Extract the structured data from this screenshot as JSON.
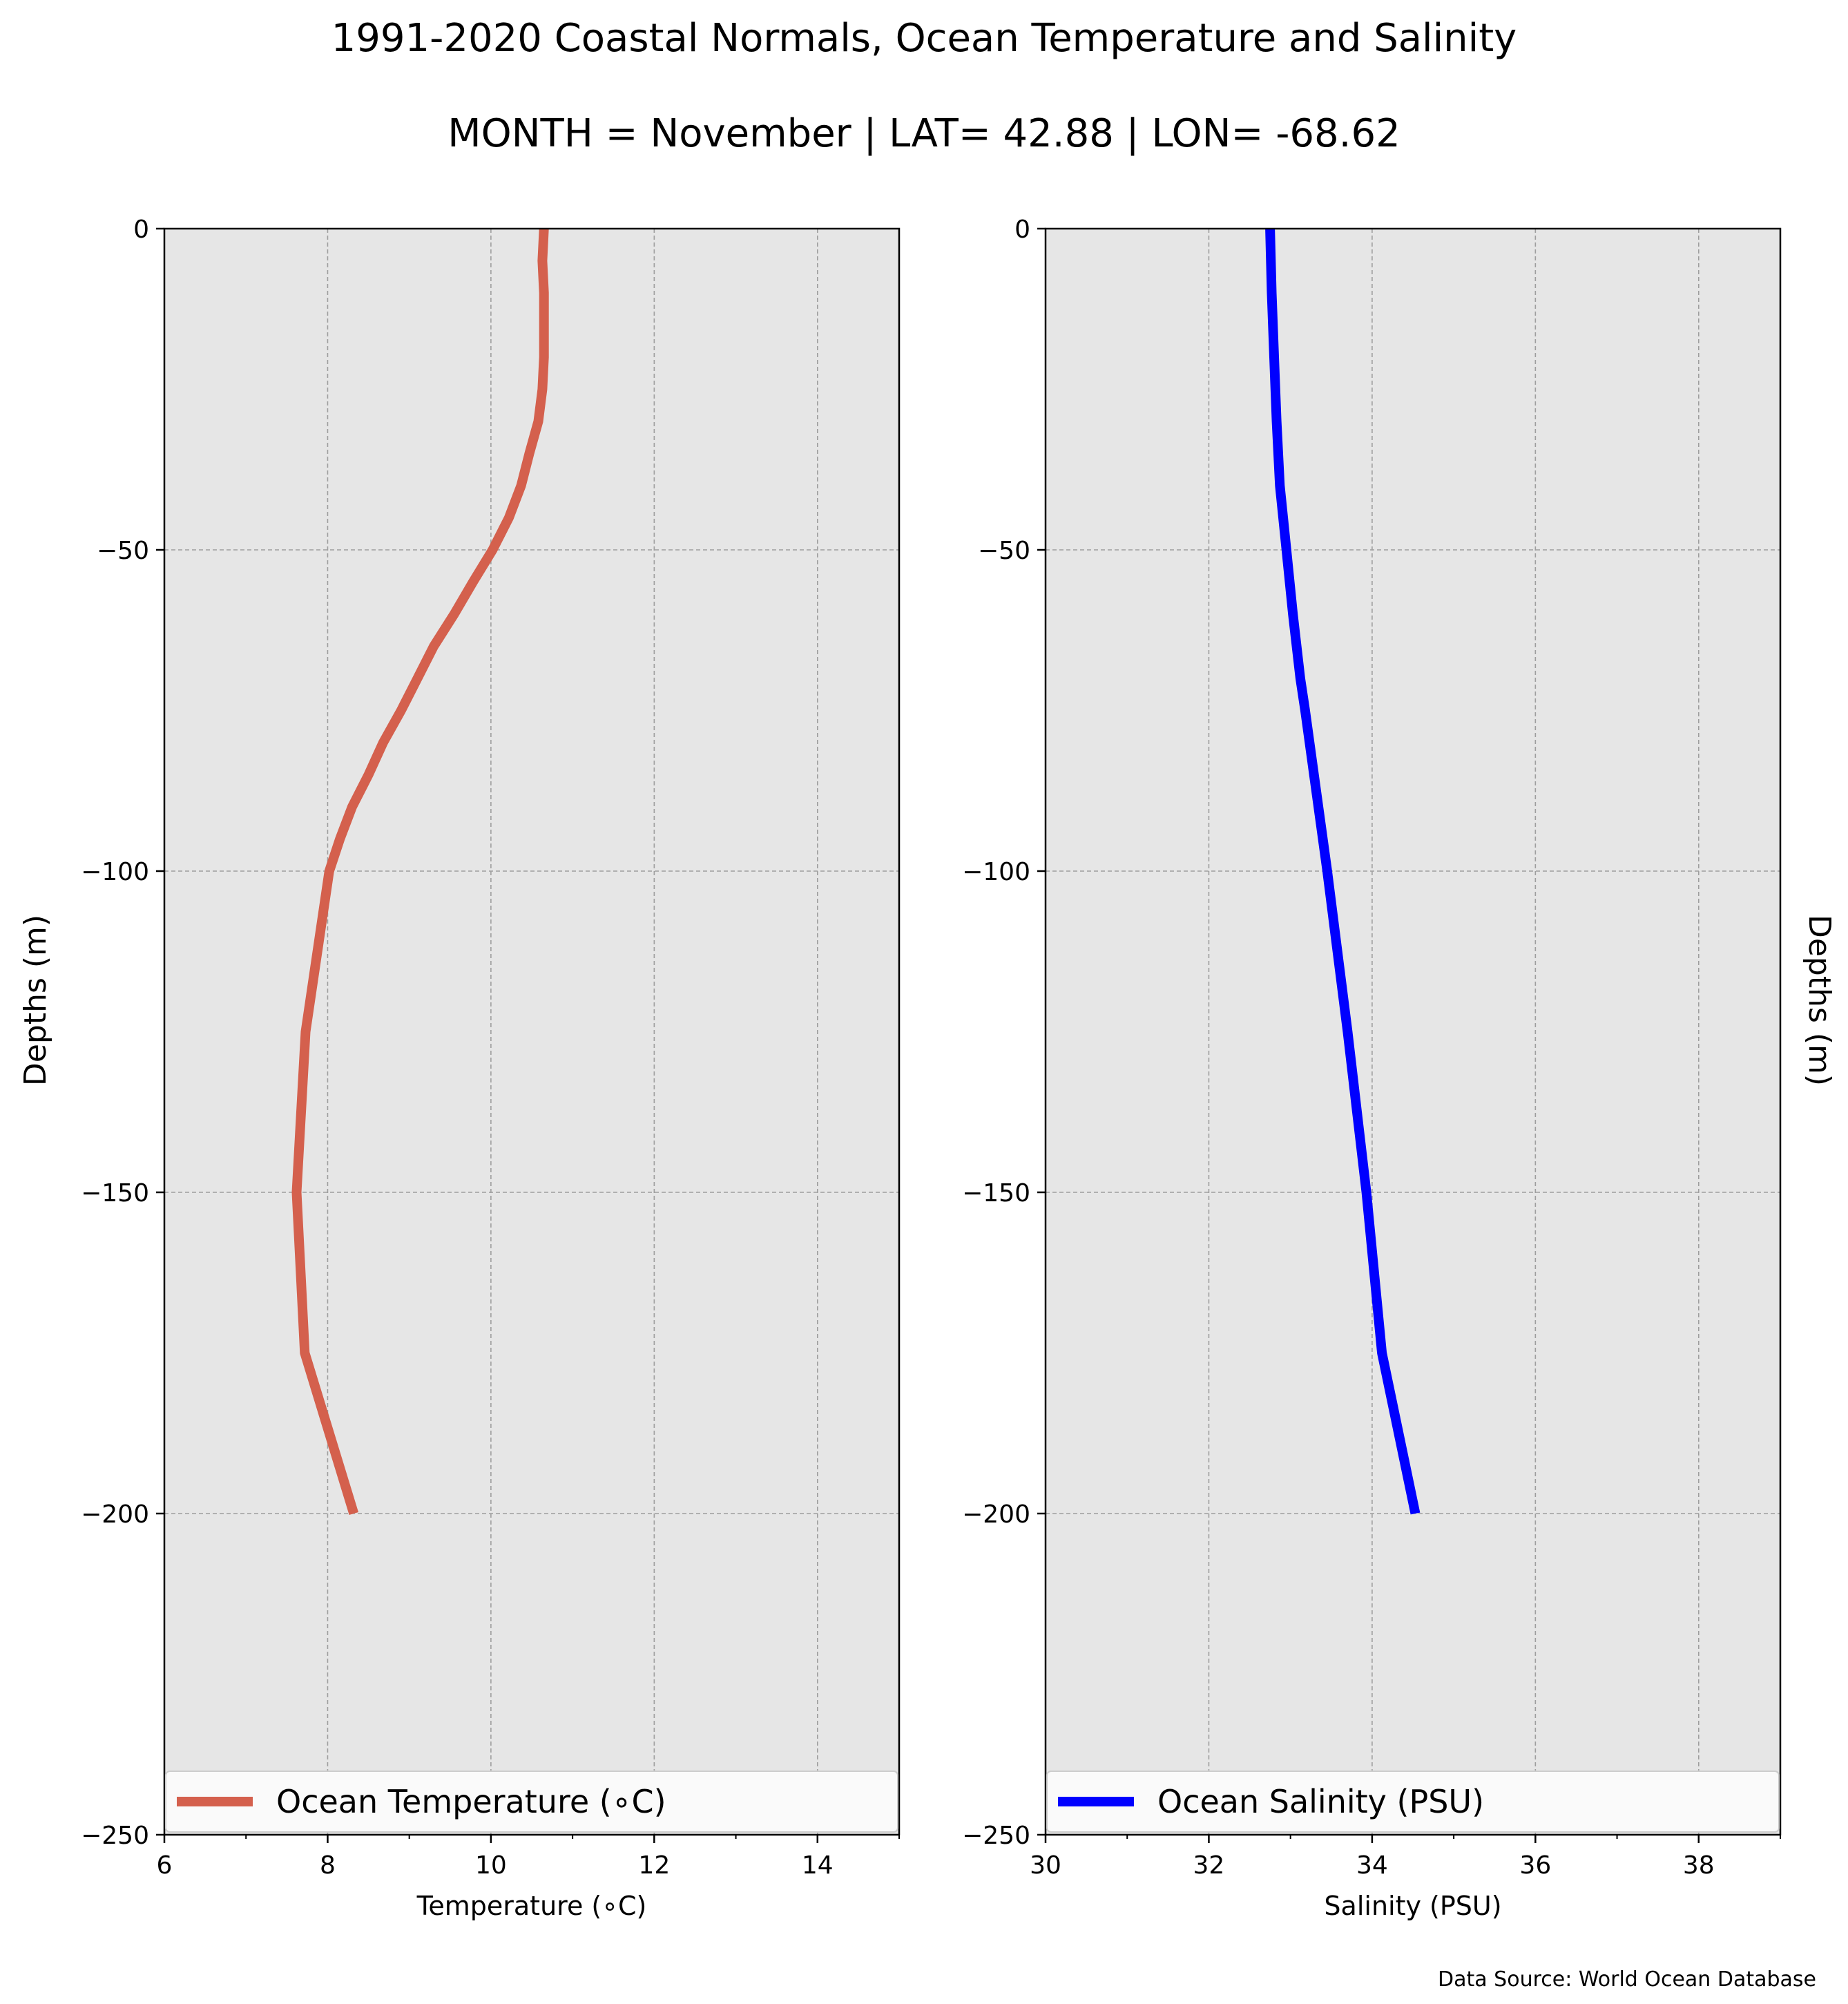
{
  "title": "1991-2020 Coastal Normals, Ocean Temperature and Salinity",
  "subtitle": "MONTH = November | LAT= 42.88 | LON= -68.62",
  "source": "Data Source: World Ocean Database",
  "chart_data": [
    {
      "type": "line",
      "xlabel": "Temperature ($^\\circ$C)",
      "xlabel_display": "Temperature (∘C)",
      "ylabel": "Depths (m)",
      "xlim": [
        6,
        15
      ],
      "ylim": [
        -250,
        0
      ],
      "xticks": [
        "6",
        "8",
        "10",
        "12",
        "14"
      ],
      "xtick_values": [
        6,
        8,
        10,
        12,
        14
      ],
      "yticks": [
        "0",
        "−50",
        "−100",
        "−150",
        "−200",
        "−250"
      ],
      "ytick_values": [
        0,
        -50,
        -100,
        -150,
        -200,
        -250
      ],
      "grid": true,
      "background": "#e6e6e6",
      "legend_placement": "bottom",
      "series": [
        {
          "name": "Ocean Temperature (∘C)",
          "color": "#d4604d",
          "depth": [
            0,
            -5,
            -10,
            -15,
            -20,
            -25,
            -30,
            -35,
            -40,
            -45,
            -50,
            -55,
            -60,
            -65,
            -70,
            -75,
            -80,
            -85,
            -90,
            -95,
            -100,
            -125,
            -150,
            -175,
            -200
          ],
          "values": [
            10.65,
            10.63,
            10.65,
            10.65,
            10.65,
            10.63,
            10.58,
            10.47,
            10.37,
            10.22,
            10.02,
            9.78,
            9.55,
            9.3,
            9.1,
            8.9,
            8.68,
            8.5,
            8.3,
            8.15,
            8.02,
            7.73,
            7.62,
            7.72,
            8.32
          ]
        }
      ]
    },
    {
      "type": "line",
      "xlabel": "Salinity (PSU)",
      "ylabel": "Depths (m)",
      "xlim": [
        30,
        39
      ],
      "ylim": [
        -250,
        0
      ],
      "xticks": [
        "30",
        "32",
        "34",
        "36",
        "38"
      ],
      "xtick_values": [
        30,
        32,
        34,
        36,
        38
      ],
      "yticks": [
        "0",
        "−50",
        "−100",
        "−150",
        "−200",
        "−250"
      ],
      "ytick_values": [
        0,
        -50,
        -100,
        -150,
        -200,
        -250
      ],
      "grid": true,
      "background": "#e6e6e6",
      "legend_placement": "bottom",
      "series": [
        {
          "name": "Ocean Salinity (PSU)",
          "color": "#0000ff",
          "depth": [
            0,
            -10,
            -20,
            -30,
            -40,
            -50,
            -60,
            -70,
            -75,
            -100,
            -125,
            -150,
            -175,
            -200
          ],
          "values": [
            32.75,
            32.77,
            32.8,
            32.83,
            32.87,
            32.95,
            33.03,
            33.12,
            33.18,
            33.45,
            33.7,
            33.93,
            34.12,
            34.53
          ]
        }
      ]
    }
  ]
}
